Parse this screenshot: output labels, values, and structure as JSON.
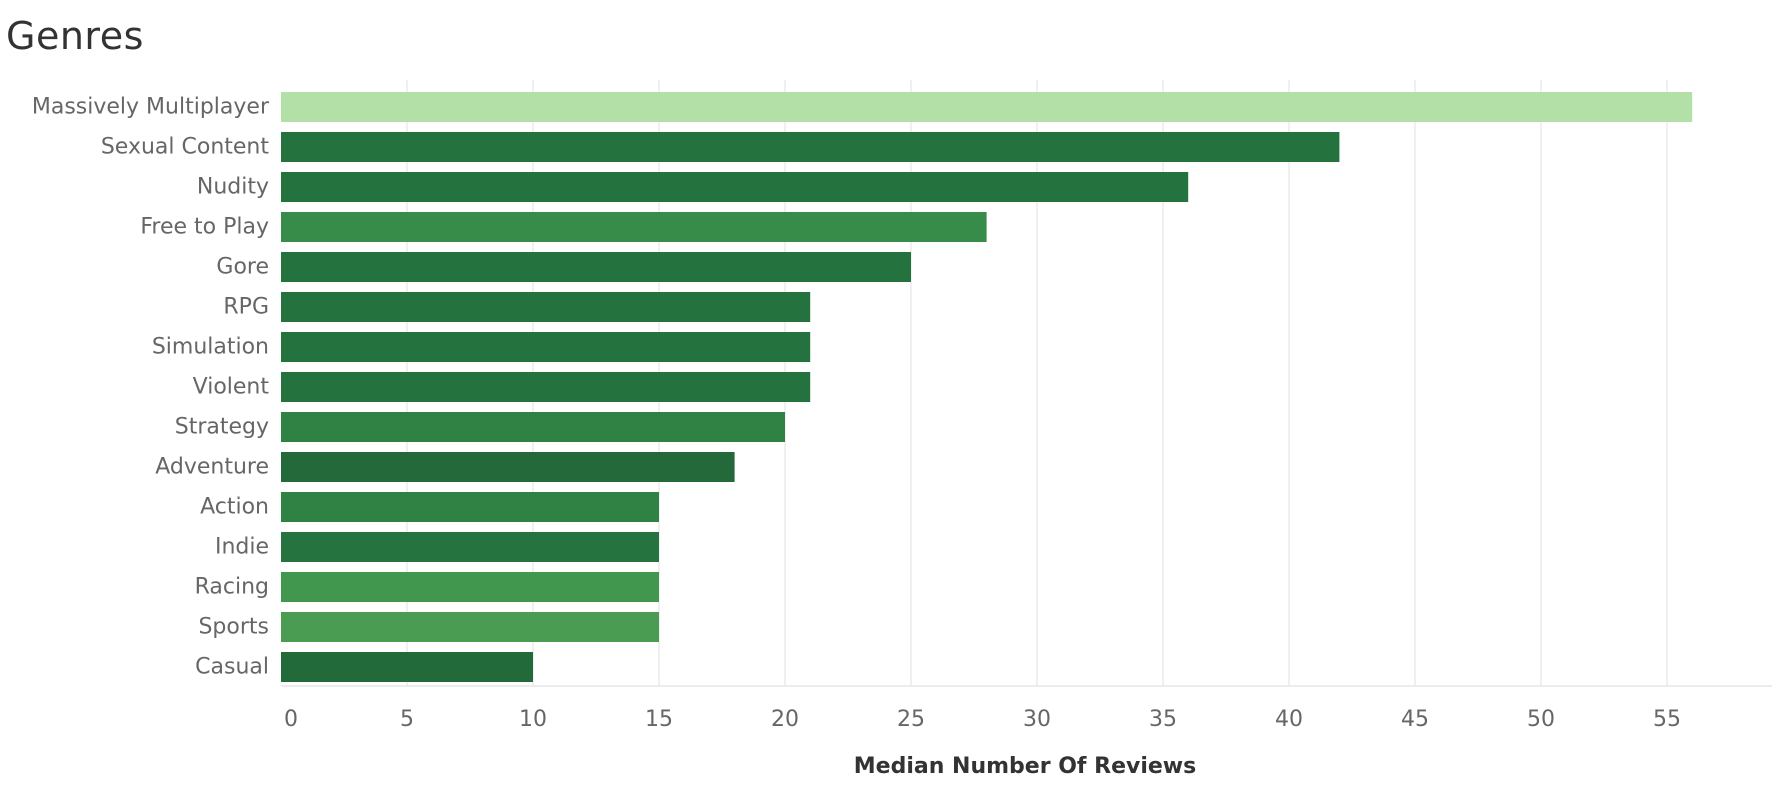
{
  "chart_data": {
    "type": "bar",
    "orientation": "horizontal",
    "title": "Genres",
    "xlabel": "Median Number Of Reviews",
    "ylabel": "",
    "xlim": [
      0,
      58
    ],
    "ticks": [
      0,
      5,
      10,
      15,
      20,
      25,
      30,
      35,
      40,
      45,
      50,
      55
    ],
    "tick_labels": [
      "0",
      "5",
      "10",
      "15",
      "20",
      "25",
      "30",
      "35",
      "40",
      "45",
      "50",
      "55"
    ],
    "grid": true,
    "categories": [
      "Massively Multiplayer",
      "Sexual Content",
      "Nudity",
      "Free to Play",
      "Gore",
      "RPG",
      "Simulation",
      "Violent",
      "Strategy",
      "Adventure",
      "Action",
      "Indie",
      "Racing",
      "Sports",
      "Casual"
    ],
    "values": [
      56,
      42,
      36,
      28,
      25,
      21,
      21,
      21,
      20,
      18,
      15,
      15,
      15,
      15,
      10
    ],
    "colors": [
      "#b3e0a6",
      "#24733e",
      "#24733e",
      "#388c4a",
      "#24733e",
      "#24733e",
      "#24733e",
      "#24733e",
      "#2f8244",
      "#23693a",
      "#2f8244",
      "#25743f",
      "#42974f",
      "#4a9c53",
      "#226a39"
    ]
  }
}
